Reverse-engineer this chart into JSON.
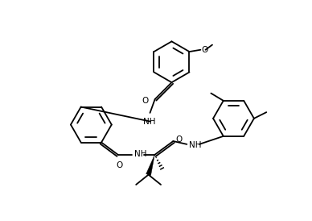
{
  "bg": "#ffffff",
  "lc": "#000000",
  "lw": 1.3,
  "fs": 7.5,
  "fig_w": 3.88,
  "fig_h": 2.74,
  "dpi": 100,
  "xlim": [
    0,
    388
  ],
  "ylim": [
    0,
    274
  ]
}
